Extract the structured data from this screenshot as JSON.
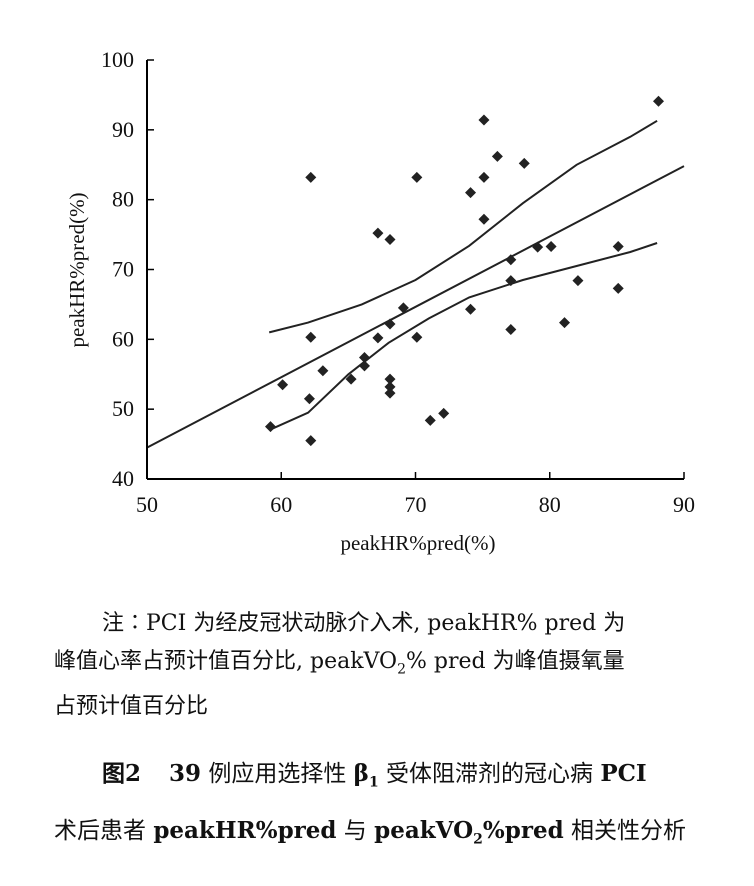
{
  "chart_data": {
    "type": "scatter",
    "title": "",
    "xlabel": "peakHR%pred(%)",
    "ylabel": "peakHR%pred(%)",
    "xlim": [
      50,
      90
    ],
    "ylim": [
      40,
      100
    ],
    "xticks": [
      50,
      60,
      70,
      80,
      90
    ],
    "yticks": [
      40,
      50,
      60,
      70,
      80,
      90,
      100
    ],
    "grid": false,
    "legend": "none",
    "points": [
      [
        59.2,
        47.5
      ],
      [
        60.1,
        53.5
      ],
      [
        62.1,
        51.5
      ],
      [
        62.2,
        45.5
      ],
      [
        62.2,
        60.3
      ],
      [
        62.2,
        83.2
      ],
      [
        63.1,
        55.5
      ],
      [
        65.2,
        54.3
      ],
      [
        66.2,
        56.2
      ],
      [
        66.2,
        57.4
      ],
      [
        67.2,
        60.2
      ],
      [
        67.2,
        75.2
      ],
      [
        68.1,
        52.3
      ],
      [
        68.1,
        53.2
      ],
      [
        68.1,
        54.3
      ],
      [
        68.1,
        62.2
      ],
      [
        68.1,
        74.3
      ],
      [
        69.1,
        64.5
      ],
      [
        70.1,
        60.3
      ],
      [
        70.1,
        83.2
      ],
      [
        71.1,
        48.4
      ],
      [
        72.1,
        49.4
      ],
      [
        74.1,
        64.3
      ],
      [
        74.1,
        81.0
      ],
      [
        75.1,
        77.2
      ],
      [
        75.1,
        83.2
      ],
      [
        75.1,
        91.4
      ],
      [
        76.1,
        86.2
      ],
      [
        77.1,
        61.4
      ],
      [
        77.1,
        68.4
      ],
      [
        77.1,
        71.4
      ],
      [
        78.1,
        85.2
      ],
      [
        79.1,
        73.2
      ],
      [
        80.1,
        73.3
      ],
      [
        81.1,
        62.4
      ],
      [
        82.1,
        68.4
      ],
      [
        85.1,
        67.3
      ],
      [
        85.1,
        73.3
      ],
      [
        88.1,
        94.1
      ]
    ],
    "regression_line": [
      [
        50,
        44.5
      ],
      [
        90,
        84.8
      ]
    ],
    "upper_confidence_band": [
      [
        59.1,
        61.0
      ],
      [
        62,
        62.4
      ],
      [
        66,
        65.0
      ],
      [
        70,
        68.5
      ],
      [
        74,
        73.4
      ],
      [
        78,
        79.5
      ],
      [
        82,
        85.0
      ],
      [
        86,
        89.0
      ],
      [
        88,
        91.3
      ]
    ],
    "lower_confidence_band": [
      [
        59.1,
        47.0
      ],
      [
        62,
        49.5
      ],
      [
        65,
        55.0
      ],
      [
        68,
        59.5
      ],
      [
        71,
        63.0
      ],
      [
        74,
        66.0
      ],
      [
        78,
        68.5
      ],
      [
        82,
        70.5
      ],
      [
        86,
        72.5
      ],
      [
        88,
        73.8
      ]
    ],
    "colors": {
      "marker": "#222222",
      "line": "#222222"
    }
  },
  "note": {
    "line1": "注∶PCI 为经皮冠状动脉介入术, peakHR% pred 为",
    "line2a": "峰值心率占预计值百分比, peakVO",
    "line2_sub": "2",
    "line2b": "% pred 为峰值摄氧量",
    "line3": "占预计值百分比"
  },
  "caption": {
    "figure_label": "图2",
    "count": "39",
    "text_a": "例应用选择性",
    "beta": "β",
    "beta_sub": "1",
    "text_b": "受体阻滞剂的冠心病",
    "pci": "PCI",
    "line2_a": "术后患者",
    "hr_label": "peakHR%pred",
    "line2_b": "与",
    "vo_label": "peakVO",
    "vo_sub": "2",
    "vo_label_end": "%pred",
    "line2_c": "相关性分析"
  }
}
